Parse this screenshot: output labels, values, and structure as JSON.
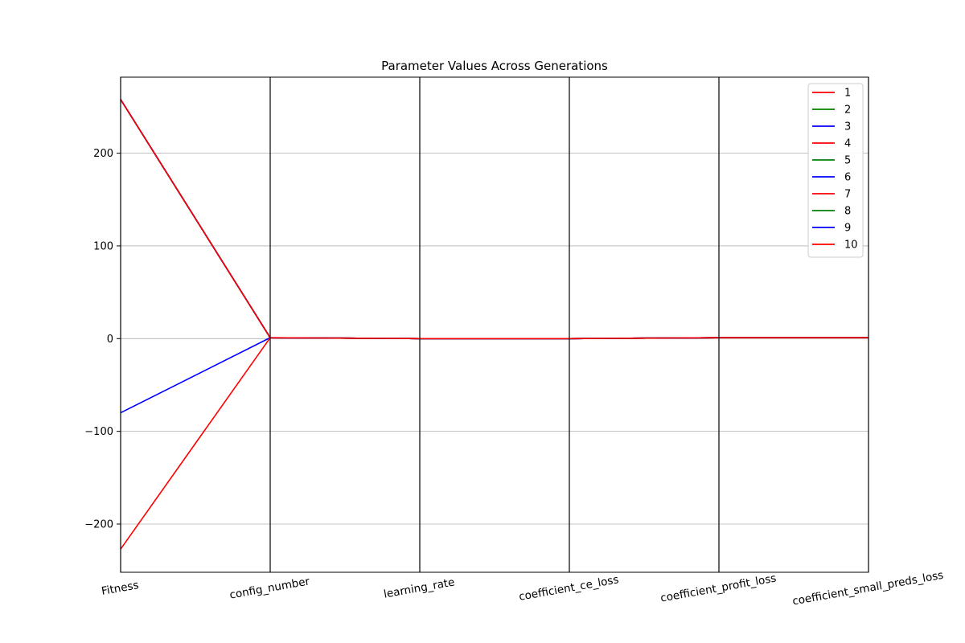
{
  "chart_data": {
    "type": "line",
    "subtype": "parallel-coordinates",
    "title": "Parameter Values Across Generations",
    "categories": [
      "Fitness",
      "config_number",
      "learning_rate",
      "coefficient_ce_loss",
      "coefficient_profit_loss",
      "coefficient_small_preds_loss"
    ],
    "ylim": [
      -252,
      282
    ],
    "yticks": [
      -200,
      -100,
      0,
      100,
      200
    ],
    "ytick_labels": [
      "−200",
      "−100",
      "0",
      "100",
      "200"
    ],
    "grid": true,
    "legend_position": "top-right",
    "series": [
      {
        "name": "1",
        "color": "#ff0000",
        "values": [
          258,
          1,
          0,
          0,
          1,
          1
        ]
      },
      {
        "name": "2",
        "color": "#008000",
        "values": [
          258,
          1,
          0,
          0,
          1,
          1
        ]
      },
      {
        "name": "3",
        "color": "#0000ff",
        "values": [
          -80,
          1,
          0,
          0,
          1,
          1
        ]
      },
      {
        "name": "4",
        "color": "#ff0000",
        "values": [
          -227,
          1,
          0,
          0,
          1,
          1
        ]
      },
      {
        "name": "5",
        "color": "#008000",
        "values": [
          258,
          1,
          0,
          0,
          1,
          1
        ]
      },
      {
        "name": "6",
        "color": "#0000ff",
        "values": [
          258,
          1,
          0,
          0,
          1,
          1
        ]
      },
      {
        "name": "7",
        "color": "#ff0000",
        "values": [
          258,
          1,
          0,
          0,
          1,
          1
        ]
      },
      {
        "name": "8",
        "color": "#008000",
        "values": [
          258,
          1,
          0,
          0,
          1,
          1
        ]
      },
      {
        "name": "9",
        "color": "#0000ff",
        "values": [
          258,
          1,
          0,
          0,
          1,
          1
        ]
      },
      {
        "name": "10",
        "color": "#ff0000",
        "values": [
          258,
          1,
          0,
          0,
          1,
          1
        ]
      }
    ]
  }
}
